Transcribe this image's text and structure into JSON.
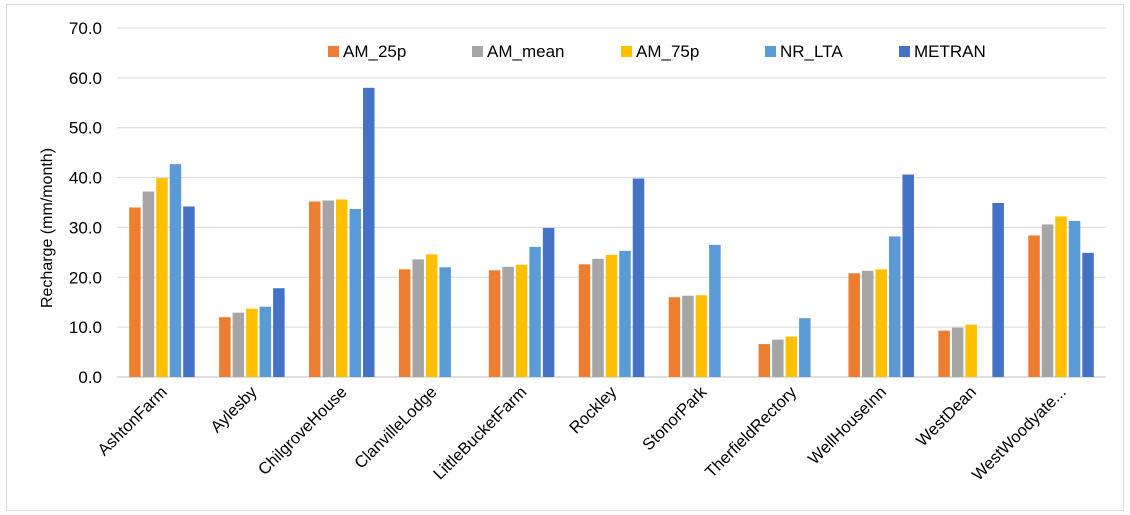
{
  "chart_data": {
    "type": "bar",
    "title": "",
    "xlabel": "",
    "ylabel": "Recharge (mm/month)",
    "ylim": [
      0,
      70
    ],
    "yticks": [
      "0.0",
      "10.0",
      "20.0",
      "30.0",
      "40.0",
      "50.0",
      "60.0",
      "70.0"
    ],
    "grid": true,
    "legend_position": "top",
    "categories": [
      "AshtonFarm",
      "Aylesby",
      "ChilgroveHouse",
      "ClanvilleLodge",
      "LittleBucketFarm",
      "Rockley",
      "StonorPark",
      "TherfieldRectory",
      "WellHouseInn",
      "WestDean",
      "WestWoodyate..."
    ],
    "series": [
      {
        "name": "AM_25p",
        "color": "#ED7D31",
        "values": [
          34.0,
          12.0,
          35.2,
          21.6,
          21.4,
          22.6,
          16.0,
          6.6,
          20.8,
          9.3,
          28.4
        ]
      },
      {
        "name": "AM_mean",
        "color": "#A5A5A5",
        "values": [
          37.2,
          12.9,
          35.4,
          23.6,
          22.1,
          23.7,
          16.3,
          7.5,
          21.3,
          9.9,
          30.6
        ]
      },
      {
        "name": "AM_75p",
        "color": "#FFC000",
        "values": [
          39.9,
          13.7,
          35.6,
          24.6,
          22.5,
          24.5,
          16.4,
          8.1,
          21.6,
          10.5,
          32.2
        ]
      },
      {
        "name": "NR_LTA",
        "color": "#5B9BD5",
        "values": [
          42.7,
          14.1,
          33.7,
          22.0,
          26.1,
          25.3,
          26.5,
          11.8,
          28.2,
          null,
          31.3
        ]
      },
      {
        "name": "METRAN",
        "color": "#4472C4",
        "values": [
          34.2,
          17.8,
          58.0,
          null,
          29.9,
          39.8,
          null,
          null,
          40.6,
          34.9,
          24.9
        ]
      }
    ]
  }
}
